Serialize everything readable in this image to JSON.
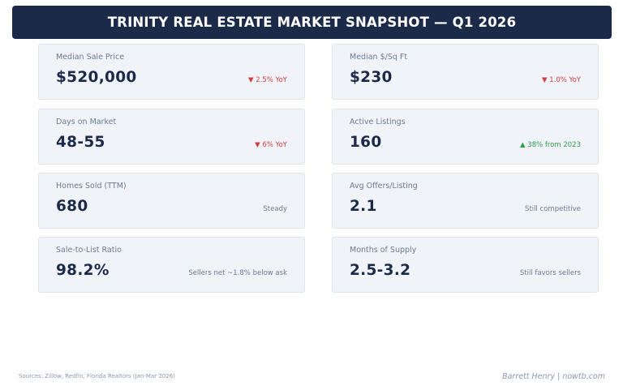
{
  "header": {
    "title": "TRINITY REAL ESTATE MARKET SNAPSHOT — Q1 2026"
  },
  "metrics": [
    {
      "label": "Median Sale Price",
      "value": "$520,000",
      "change": "▼ 2.5% YoY",
      "trend": "down"
    },
    {
      "label": "Median $/Sq Ft",
      "value": "$230",
      "change": "▼ 1.0% YoY",
      "trend": "down"
    },
    {
      "label": "Days on Market",
      "value": "48-55",
      "change": "▼ 6% YoY",
      "trend": "down"
    },
    {
      "label": "Active Listings",
      "value": "160",
      "change": "▲ 38% from 2023",
      "trend": "up"
    },
    {
      "label": "Homes Sold (TTM)",
      "value": "680",
      "change": "Steady",
      "trend": "neutral"
    },
    {
      "label": "Avg Offers/Listing",
      "value": "2.1",
      "change": "Still competitive",
      "trend": "neutral"
    },
    {
      "label": "Sale-to-List Ratio",
      "value": "98.2%",
      "change": "Sellers net ~1.8% below ask",
      "trend": "neutral"
    },
    {
      "label": "Months of Supply",
      "value": "2.5-3.2",
      "change": "Still favors sellers",
      "trend": "neutral"
    }
  ],
  "footer": {
    "sources": "Sources: Zillow, Redfin, Florida Realtors (Jan-Mar 2026)",
    "credit": "Barrett Henry | nowtb.com"
  },
  "colors": {
    "banner": "#1c2a4a",
    "card_bg": "#f0f4f9",
    "down": "#d13b3b",
    "up": "#2e9a4a"
  }
}
